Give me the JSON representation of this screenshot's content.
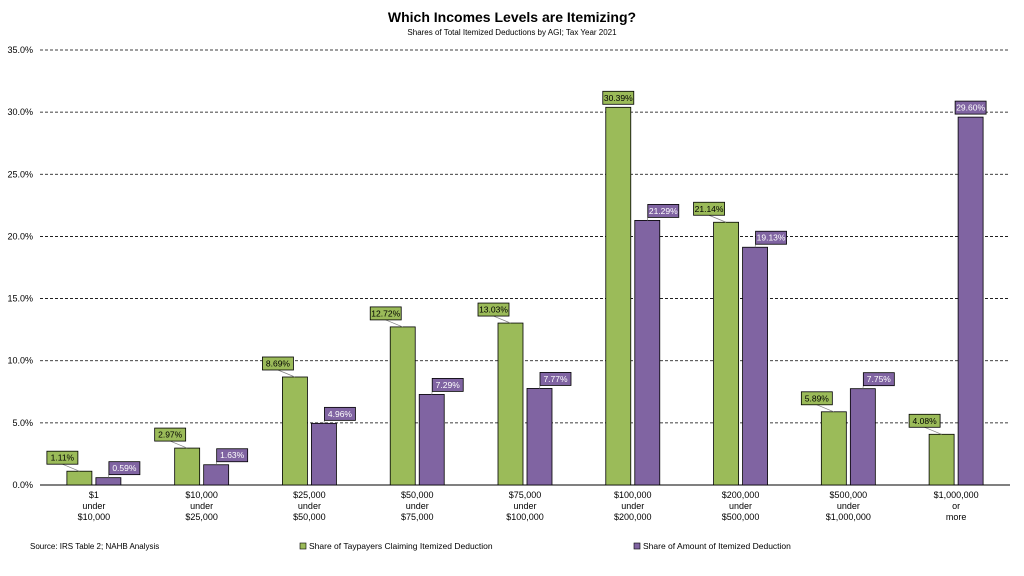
{
  "chart_data": {
    "type": "bar",
    "title": "Which Incomes Levels are Itemizing?",
    "subtitle": "Shares of Total Itemized Deductions by AGI; Tax Year 2021",
    "source": "Source: IRS Table 2; NAHB Analysis",
    "ylim": [
      0,
      35
    ],
    "yticks": [
      "0.0%",
      "5.0%",
      "10.0%",
      "15.0%",
      "20.0%",
      "25.0%",
      "30.0%",
      "35.0%"
    ],
    "ytick_values": [
      0,
      5,
      10,
      15,
      20,
      25,
      30,
      35
    ],
    "grid": true,
    "legend_position": "bottom",
    "categories": [
      [
        "$1",
        "under",
        "$10,000"
      ],
      [
        "$10,000",
        "under",
        "$25,000"
      ],
      [
        "$25,000",
        "under",
        "$50,000"
      ],
      [
        "$50,000",
        "under",
        "$75,000"
      ],
      [
        "$75,000",
        "under",
        "$100,000"
      ],
      [
        "$100,000",
        "under",
        "$200,000"
      ],
      [
        "$200,000",
        "under",
        "$500,000"
      ],
      [
        "$500,000",
        "under",
        "$1,000,000"
      ],
      [
        "$1,000,000",
        "or",
        "more"
      ]
    ],
    "series": [
      {
        "name": "Share of Taypayers Claiming Itemized Deduction",
        "color": "#9bbb59",
        "values": [
          1.11,
          2.97,
          8.69,
          12.72,
          13.03,
          30.39,
          21.14,
          5.89,
          4.08
        ],
        "labels": [
          "1.11%",
          "2.97%",
          "8.69%",
          "12.72%",
          "13.03%",
          "30.39%",
          "21.14%",
          "5.89%",
          "4.08%"
        ]
      },
      {
        "name": "Share of Amount of Itemized Deduction",
        "color": "#8064a2",
        "values": [
          0.59,
          1.63,
          4.96,
          7.29,
          7.77,
          21.29,
          19.13,
          7.75,
          29.6
        ],
        "labels": [
          "0.59%",
          "1.63%",
          "4.96%",
          "7.29%",
          "7.77%",
          "21.29%",
          "19.13%",
          "7.75%",
          "29.60%"
        ]
      }
    ]
  }
}
